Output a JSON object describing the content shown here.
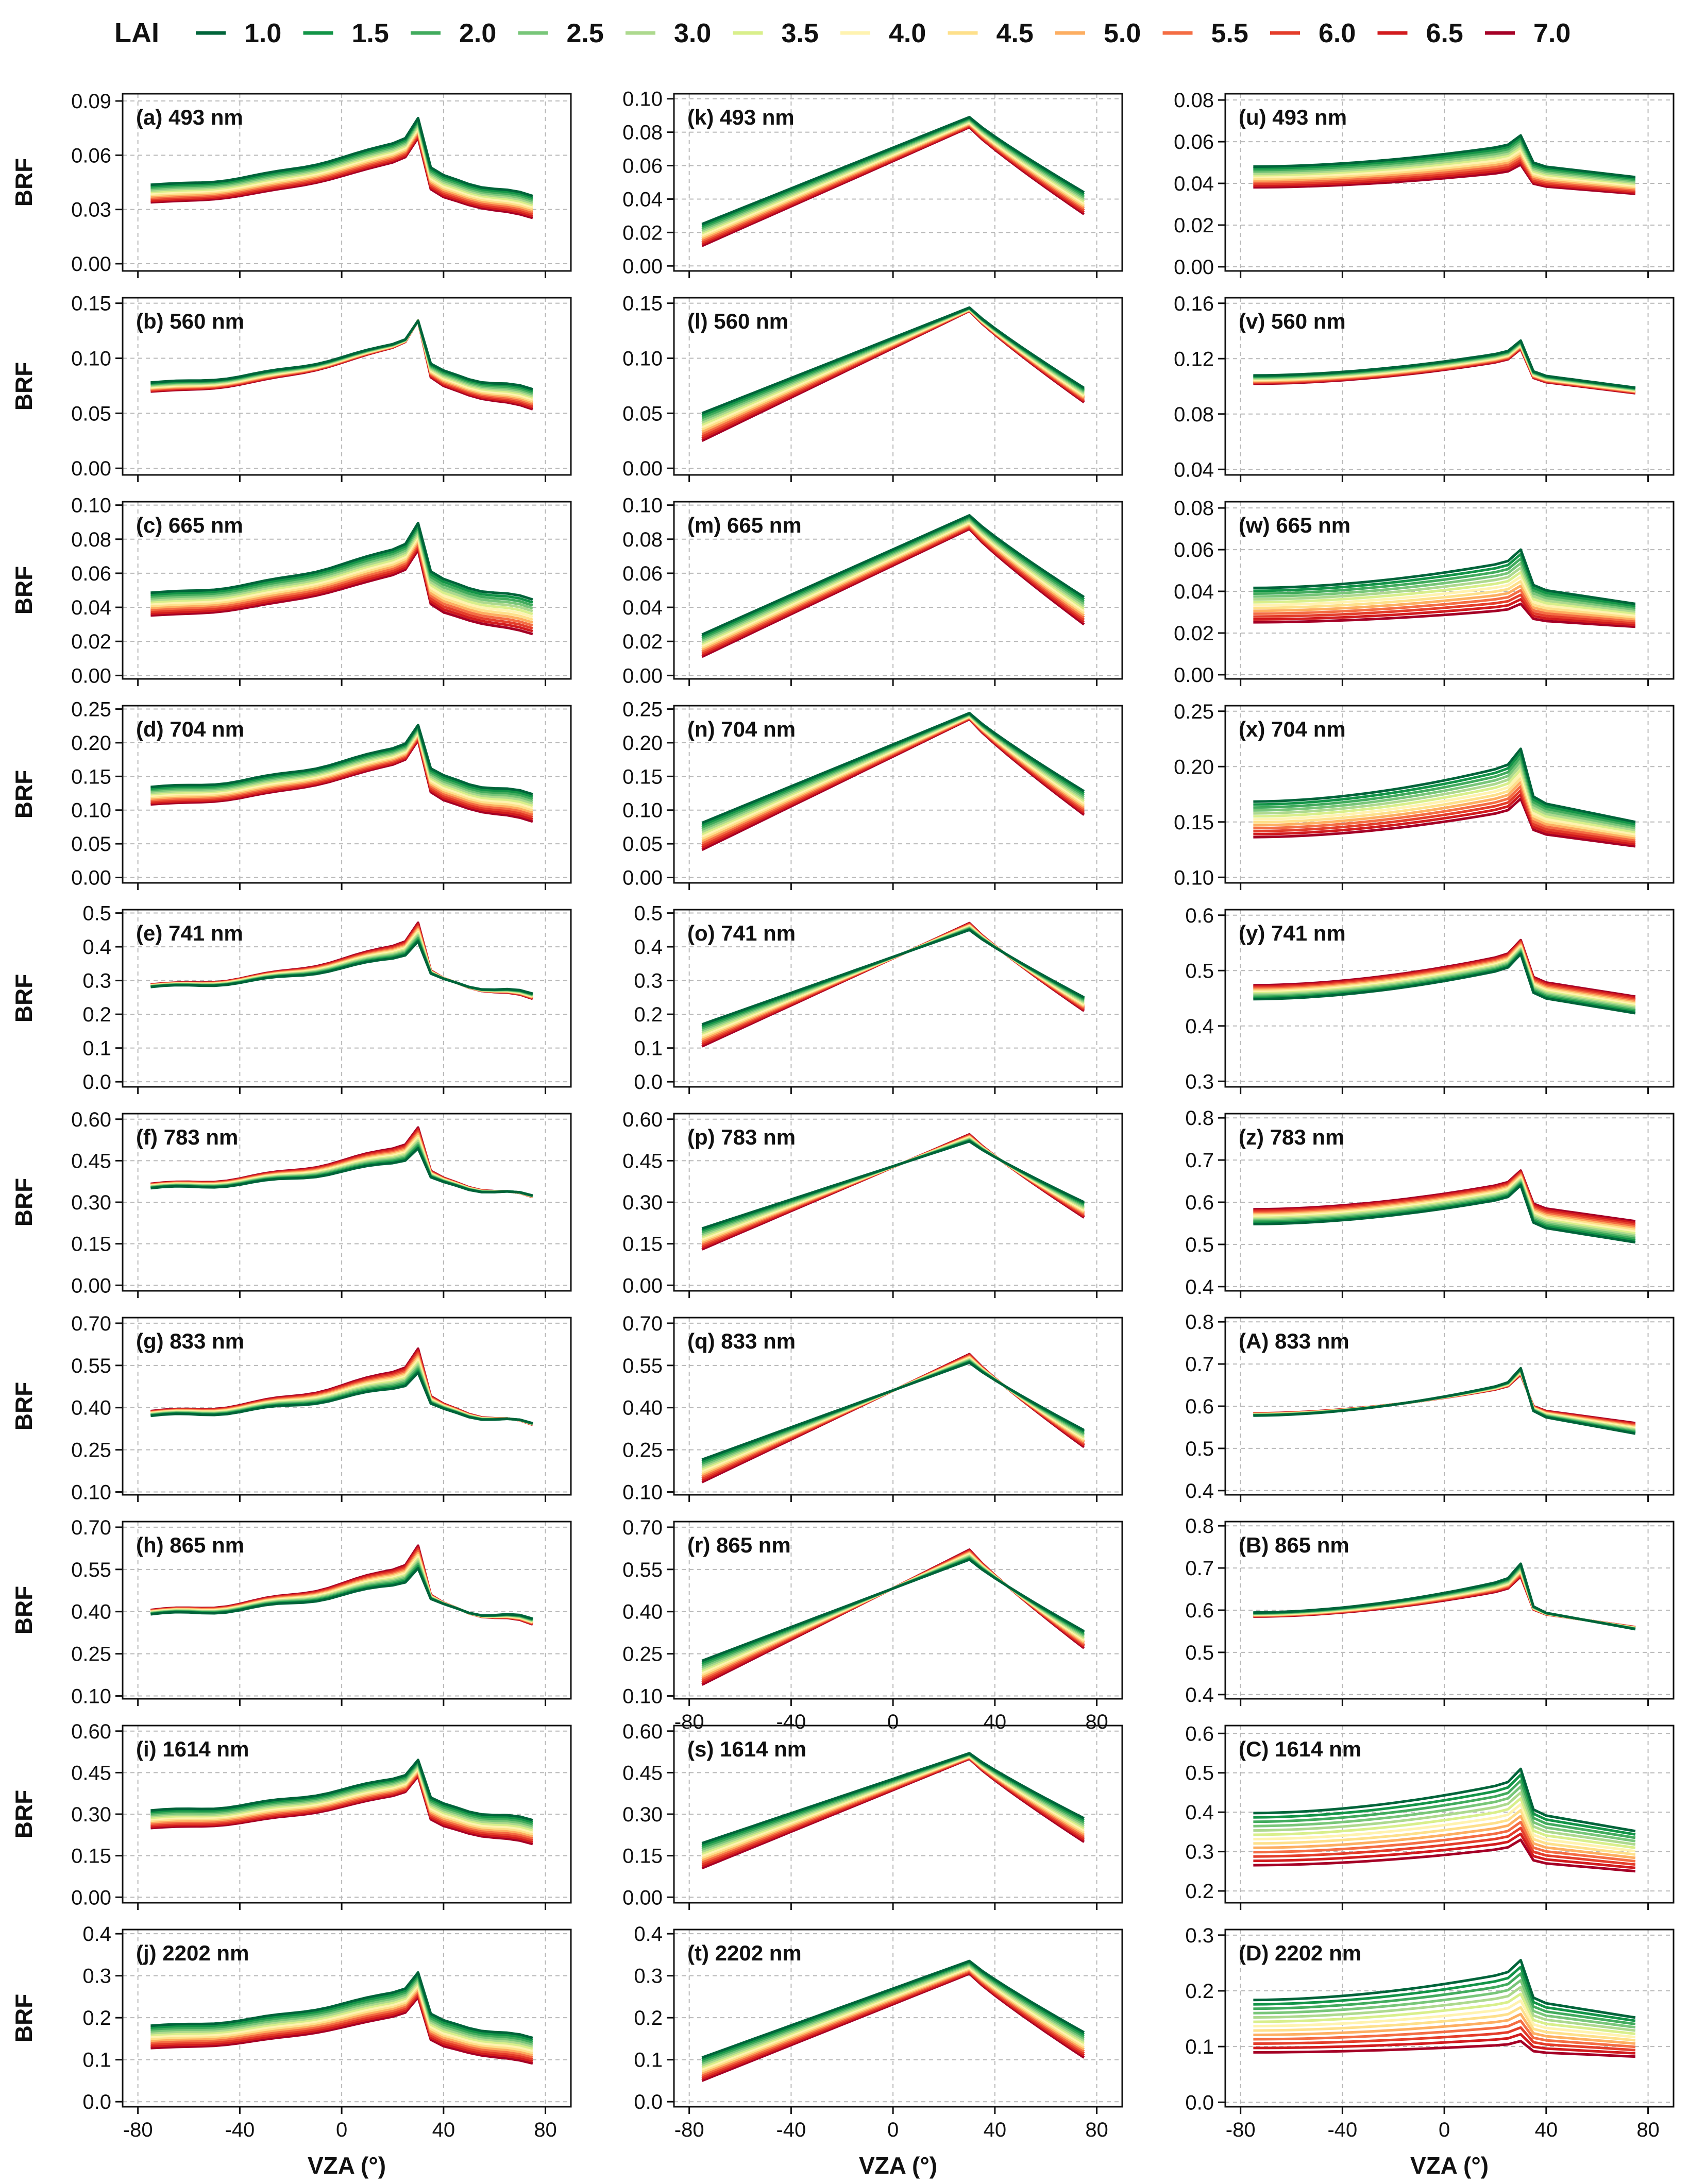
{
  "figure": {
    "legend_title": "LAI",
    "lai_levels": [
      "1.0",
      "1.5",
      "2.0",
      "2.5",
      "3.0",
      "3.5",
      "4.0",
      "4.5",
      "5.0",
      "5.5",
      "6.0",
      "6.5",
      "7.0"
    ],
    "colors": [
      "#00643a",
      "#129447",
      "#41ab5d",
      "#78c679",
      "#add98e",
      "#d9ef8b",
      "#fff3b0",
      "#fee08b",
      "#fdae61",
      "#f46d43",
      "#e43d2a",
      "#d21b1e",
      "#a50026"
    ],
    "y_label": "BRF",
    "x_label": "VZA (°)",
    "x_ticks": [
      -80,
      -40,
      0,
      40,
      80
    ],
    "x_range": [
      -86,
      90
    ]
  },
  "chart_data": [
    {
      "type": "line",
      "label": "(a) 493 nm",
      "col": 0,
      "row": 0,
      "ylim": [
        -0.004,
        0.094
      ],
      "yticks": [
        0.0,
        0.03,
        0.06,
        0.09
      ],
      "ytick_labels": [
        "0.00",
        "0.03",
        "0.06",
        "0.09"
      ],
      "left": 0.026,
      "peak": 0.081,
      "right": 0.037,
      "dleft": -0.009,
      "dpeak": -0.011,
      "dright": -0.012,
      "hump": 0.35,
      "ripple": 1
    },
    {
      "type": "line",
      "label": "(b) 560 nm",
      "col": 0,
      "row": 1,
      "ylim": [
        -0.006,
        0.155
      ],
      "yticks": [
        0.0,
        0.05,
        0.1,
        0.15
      ],
      "ytick_labels": [
        "0.00",
        "0.05",
        "0.10",
        "0.15"
      ],
      "left": 0.051,
      "peak": 0.135,
      "right": 0.071,
      "dleft": -0.012,
      "dpeak": 0.0,
      "dright": -0.018,
      "hump": 0.35,
      "ripple": 1
    },
    {
      "type": "line",
      "label": "(c) 665 nm",
      "col": 0,
      "row": 2,
      "ylim": [
        -0.002,
        0.102
      ],
      "yticks": [
        0.0,
        0.02,
        0.04,
        0.06,
        0.08,
        0.1
      ],
      "ytick_labels": [
        "0.00",
        "0.02",
        "0.04",
        "0.06",
        "0.08",
        "0.10"
      ],
      "left": 0.029,
      "peak": 0.09,
      "right": 0.044,
      "dleft": -0.012,
      "dpeak": -0.016,
      "dright": -0.02,
      "hump": 0.35,
      "ripple": 1
    },
    {
      "type": "line",
      "label": "(d) 704 nm",
      "col": 0,
      "row": 3,
      "ylim": [
        -0.008,
        0.255
      ],
      "yticks": [
        0.0,
        0.05,
        0.1,
        0.15,
        0.2,
        0.25
      ],
      "ytick_labels": [
        "0.00",
        "0.05",
        "0.10",
        "0.15",
        "0.20",
        "0.25"
      ],
      "left": 0.09,
      "peak": 0.228,
      "right": 0.122,
      "dleft": -0.027,
      "dpeak": -0.023,
      "dright": -0.04,
      "hump": 0.35,
      "ripple": 1
    },
    {
      "type": "line",
      "label": "(e) 741 nm",
      "col": 0,
      "row": 4,
      "ylim": [
        -0.015,
        0.51
      ],
      "yticks": [
        0.0,
        0.1,
        0.2,
        0.3,
        0.4,
        0.5
      ],
      "ytick_labels": [
        "0.0",
        "0.1",
        "0.2",
        "0.3",
        "0.4",
        "0.5"
      ],
      "left": 0.215,
      "peak": 0.42,
      "right": 0.258,
      "dleft": -0.015,
      "dpeak": 0.055,
      "dright": -0.015,
      "hump": 0.2,
      "ripple": 1
    },
    {
      "type": "line",
      "label": "(f) 783 nm",
      "col": 0,
      "row": 5,
      "ylim": [
        -0.02,
        0.62
      ],
      "yticks": [
        0.0,
        0.15,
        0.3,
        0.45,
        0.6
      ],
      "ytick_labels": [
        "0.00",
        "0.15",
        "0.30",
        "0.45",
        "0.60"
      ],
      "left": 0.28,
      "peak": 0.5,
      "right": 0.32,
      "dleft": -0.012,
      "dpeak": 0.075,
      "dright": -0.005,
      "hump": 0.2,
      "ripple": 1
    },
    {
      "type": "line",
      "label": "(g) 833 nm",
      "col": 0,
      "row": 6,
      "ylim": [
        0.09,
        0.72
      ],
      "yticks": [
        0.1,
        0.25,
        0.4,
        0.55,
        0.7
      ],
      "ytick_labels": [
        "0.10",
        "0.25",
        "0.40",
        "0.55",
        "0.70"
      ],
      "left": 0.295,
      "peak": 0.53,
      "right": 0.34,
      "dleft": -0.015,
      "dpeak": 0.085,
      "dright": -0.005,
      "hump": 0.2,
      "ripple": 1
    },
    {
      "type": "line",
      "label": "(h) 865 nm",
      "col": 0,
      "row": 7,
      "ylim": [
        0.09,
        0.72
      ],
      "yticks": [
        0.1,
        0.25,
        0.4,
        0.55,
        0.7
      ],
      "ytick_labels": [
        "0.10",
        "0.25",
        "0.40",
        "0.55",
        "0.70"
      ],
      "left": 0.31,
      "peak": 0.56,
      "right": 0.37,
      "dleft": -0.015,
      "dpeak": 0.08,
      "dright": -0.02,
      "hump": 0.2,
      "ripple": 1
    },
    {
      "type": "line",
      "label": "(i) 1614 nm",
      "col": 0,
      "row": 8,
      "ylim": [
        -0.02,
        0.62
      ],
      "yticks": [
        0.0,
        0.15,
        0.3,
        0.45,
        0.6
      ],
      "ytick_labels": [
        "0.00",
        "0.15",
        "0.30",
        "0.45",
        "0.60"
      ],
      "left": 0.225,
      "peak": 0.5,
      "right": 0.275,
      "dleft": -0.065,
      "dpeak": -0.06,
      "dright": -0.085,
      "hump": 0.35,
      "ripple": 1
    },
    {
      "type": "line",
      "label": "(j) 2202 nm",
      "col": 0,
      "row": 9,
      "ylim": [
        -0.012,
        0.41
      ],
      "yticks": [
        0.0,
        0.1,
        0.2,
        0.3,
        0.4
      ],
      "ytick_labels": [
        "0.0",
        "0.1",
        "0.2",
        "0.3",
        "0.4"
      ],
      "left": 0.12,
      "peak": 0.31,
      "right": 0.15,
      "dleft": -0.05,
      "dpeak": -0.06,
      "dright": -0.06,
      "hump": 0.35,
      "ripple": 1
    },
    {
      "type": "line",
      "label": "(k) 493 nm",
      "col": 1,
      "row": 0,
      "ylim": [
        -0.003,
        0.103
      ],
      "yticks": [
        0.0,
        0.02,
        0.04,
        0.06,
        0.08,
        0.1
      ],
      "ytick_labels": [
        "0.00",
        "0.02",
        "0.04",
        "0.06",
        "0.08",
        "0.10"
      ],
      "left": 0.025,
      "peak": 0.089,
      "right": 0.044,
      "dleft": -0.013,
      "dpeak": -0.006,
      "dright": -0.013,
      "hump": 0.0,
      "ripple": 0
    },
    {
      "type": "line",
      "label": "(l) 560 nm",
      "col": 1,
      "row": 1,
      "ylim": [
        -0.006,
        0.155
      ],
      "yticks": [
        0.0,
        0.05,
        0.1,
        0.15
      ],
      "ytick_labels": [
        "0.00",
        "0.05",
        "0.10",
        "0.15"
      ],
      "left": 0.05,
      "peak": 0.146,
      "right": 0.073,
      "dleft": -0.025,
      "dpeak": -0.003,
      "dright": -0.013,
      "hump": 0.0,
      "ripple": 0
    },
    {
      "type": "line",
      "label": "(m) 665 nm",
      "col": 1,
      "row": 2,
      "ylim": [
        -0.002,
        0.102
      ],
      "yticks": [
        0.0,
        0.02,
        0.04,
        0.06,
        0.08,
        0.1
      ],
      "ytick_labels": [
        "0.00",
        "0.02",
        "0.04",
        "0.06",
        "0.08",
        "0.10"
      ],
      "left": 0.024,
      "peak": 0.094,
      "right": 0.046,
      "dleft": -0.013,
      "dpeak": -0.008,
      "dright": -0.016,
      "hump": 0.0,
      "ripple": 0
    },
    {
      "type": "line",
      "label": "(n) 704 nm",
      "col": 1,
      "row": 3,
      "ylim": [
        -0.008,
        0.255
      ],
      "yticks": [
        0.0,
        0.05,
        0.1,
        0.15,
        0.2,
        0.25
      ],
      "ytick_labels": [
        "0.00",
        "0.05",
        "0.10",
        "0.15",
        "0.20",
        "0.25"
      ],
      "left": 0.081,
      "peak": 0.244,
      "right": 0.128,
      "dleft": -0.04,
      "dpeak": -0.009,
      "dright": -0.035,
      "hump": 0.0,
      "ripple": 0
    },
    {
      "type": "line",
      "label": "(o) 741 nm",
      "col": 1,
      "row": 4,
      "ylim": [
        -0.015,
        0.51
      ],
      "yticks": [
        0.0,
        0.1,
        0.2,
        0.3,
        0.4,
        0.5
      ],
      "ytick_labels": [
        "0.0",
        "0.1",
        "0.2",
        "0.3",
        "0.4",
        "0.5"
      ],
      "left": 0.17,
      "peak": 0.45,
      "right": 0.25,
      "dleft": -0.065,
      "dpeak": 0.02,
      "dright": -0.04,
      "hump": 0.0,
      "ripple": 0
    },
    {
      "type": "line",
      "label": "(p) 783 nm",
      "col": 1,
      "row": 5,
      "ylim": [
        -0.02,
        0.62
      ],
      "yticks": [
        0.0,
        0.15,
        0.3,
        0.45,
        0.6
      ],
      "ytick_labels": [
        "0.00",
        "0.15",
        "0.30",
        "0.45",
        "0.60"
      ],
      "left": 0.205,
      "peak": 0.52,
      "right": 0.3,
      "dleft": -0.075,
      "dpeak": 0.025,
      "dright": -0.055,
      "hump": 0.0,
      "ripple": 0
    },
    {
      "type": "line",
      "label": "(q) 833 nm",
      "col": 1,
      "row": 6,
      "ylim": [
        0.09,
        0.72
      ],
      "yticks": [
        0.1,
        0.25,
        0.4,
        0.55,
        0.7
      ],
      "ytick_labels": [
        "0.10",
        "0.25",
        "0.40",
        "0.55",
        "0.70"
      ],
      "left": 0.215,
      "peak": 0.56,
      "right": 0.32,
      "dleft": -0.08,
      "dpeak": 0.03,
      "dright": -0.06,
      "hump": 0.0,
      "ripple": 0
    },
    {
      "type": "line",
      "label": "(r) 865 nm",
      "col": 1,
      "row": 7,
      "ylim": [
        0.09,
        0.72
      ],
      "yticks": [
        0.1,
        0.25,
        0.4,
        0.55,
        0.7
      ],
      "ytick_labels": [
        "0.10",
        "0.25",
        "0.40",
        "0.55",
        "0.70"
      ],
      "left": 0.225,
      "peak": 0.585,
      "right": 0.33,
      "dleft": -0.085,
      "dpeak": 0.035,
      "dright": -0.06,
      "hump": 0.0,
      "ripple": 0
    },
    {
      "type": "line",
      "label": "(s) 1614 nm",
      "col": 1,
      "row": 8,
      "ylim": [
        -0.02,
        0.62
      ],
      "yticks": [
        0.0,
        0.15,
        0.3,
        0.45,
        0.6
      ],
      "ytick_labels": [
        "0.00",
        "0.15",
        "0.30",
        "0.45",
        "0.60"
      ],
      "left": 0.195,
      "peak": 0.52,
      "right": 0.285,
      "dleft": -0.09,
      "dpeak": -0.02,
      "dright": -0.085,
      "hump": 0.0,
      "ripple": 0
    },
    {
      "type": "line",
      "label": "(t) 2202 nm",
      "col": 1,
      "row": 9,
      "ylim": [
        -0.012,
        0.41
      ],
      "yticks": [
        0.0,
        0.1,
        0.2,
        0.3,
        0.4
      ],
      "ytick_labels": [
        "0.0",
        "0.1",
        "0.2",
        "0.3",
        "0.4"
      ],
      "left": 0.105,
      "peak": 0.335,
      "right": 0.165,
      "dleft": -0.055,
      "dpeak": -0.03,
      "dright": -0.06,
      "hump": 0.0,
      "ripple": 0
    },
    {
      "type": "line",
      "label": "(u) 493 nm",
      "col": 2,
      "row": 0,
      "ylim": [
        -0.002,
        0.083
      ],
      "yticks": [
        0.0,
        0.02,
        0.04,
        0.06,
        0.08
      ],
      "ytick_labels": [
        "0.00",
        "0.02",
        "0.04",
        "0.06",
        "0.08"
      ],
      "left": 0.041,
      "peak": 0.063,
      "right": 0.043,
      "dleft": -0.008,
      "dpeak": -0.014,
      "dright": -0.008,
      "hump": 0.3,
      "ripple": 0
    },
    {
      "type": "line",
      "label": "(v) 560 nm",
      "col": 2,
      "row": 1,
      "ylim": [
        0.036,
        0.164
      ],
      "yticks": [
        0.04,
        0.08,
        0.12,
        0.16
      ],
      "ytick_labels": [
        "0.04",
        "0.08",
        "0.12",
        "0.16"
      ],
      "left": 0.096,
      "peak": 0.133,
      "right": 0.099,
      "dleft": -0.006,
      "dpeak": -0.006,
      "dright": -0.004,
      "hump": 0.3,
      "ripple": 0
    },
    {
      "type": "line",
      "label": "(w) 665 nm",
      "col": 2,
      "row": 2,
      "ylim": [
        -0.002,
        0.083
      ],
      "yticks": [
        0.0,
        0.02,
        0.04,
        0.06,
        0.08
      ],
      "ytick_labels": [
        "0.00",
        "0.02",
        "0.04",
        "0.06",
        "0.08"
      ],
      "left": 0.033,
      "peak": 0.06,
      "right": 0.034,
      "dleft": -0.012,
      "dpeak": -0.026,
      "dright": -0.011,
      "hump": 0.3,
      "ripple": 0
    },
    {
      "type": "line",
      "label": "(x) 704 nm",
      "col": 2,
      "row": 3,
      "ylim": [
        0.095,
        0.255
      ],
      "yticks": [
        0.1,
        0.15,
        0.2,
        0.25
      ],
      "ytick_labels": [
        "0.10",
        "0.15",
        "0.20",
        "0.25"
      ],
      "left": 0.146,
      "peak": 0.216,
      "right": 0.15,
      "dleft": -0.026,
      "dpeak": -0.045,
      "dright": -0.022,
      "hump": 0.3,
      "ripple": 0
    },
    {
      "type": "line",
      "label": "(y) 741 nm",
      "col": 2,
      "row": 4,
      "ylim": [
        0.29,
        0.61
      ],
      "yticks": [
        0.3,
        0.4,
        0.5,
        0.6
      ],
      "ytick_labels": [
        "0.3",
        "0.4",
        "0.5",
        "0.6"
      ],
      "left": 0.41,
      "peak": 0.53,
      "right": 0.423,
      "dleft": 0.025,
      "dpeak": 0.025,
      "dright": 0.03,
      "hump": 0.3,
      "ripple": 0
    },
    {
      "type": "line",
      "label": "(z) 783 nm",
      "col": 2,
      "row": 5,
      "ylim": [
        0.39,
        0.81
      ],
      "yticks": [
        0.4,
        0.5,
        0.6,
        0.7,
        0.8
      ],
      "ytick_labels": [
        "0.4",
        "0.5",
        "0.6",
        "0.7",
        "0.8"
      ],
      "left": 0.505,
      "peak": 0.64,
      "right": 0.505,
      "dleft": 0.035,
      "dpeak": 0.035,
      "dright": 0.05,
      "hump": 0.3,
      "ripple": 0
    },
    {
      "type": "line",
      "label": "(A) 833 nm",
      "col": 2,
      "row": 6,
      "ylim": [
        0.39,
        0.81
      ],
      "yticks": [
        0.4,
        0.5,
        0.6,
        0.7,
        0.8
      ],
      "ytick_labels": [
        "0.4",
        "0.5",
        "0.6",
        "0.7",
        "0.8"
      ],
      "left": 0.525,
      "peak": 0.69,
      "right": 0.535,
      "dleft": 0.015,
      "dpeak": -0.015,
      "dright": 0.025,
      "hump": 0.3,
      "ripple": 0
    },
    {
      "type": "line",
      "label": "(B) 865 nm",
      "col": 2,
      "row": 7,
      "ylim": [
        0.39,
        0.81
      ],
      "yticks": [
        0.4,
        0.5,
        0.6,
        0.7,
        0.8
      ],
      "ytick_labels": [
        "0.4",
        "0.5",
        "0.6",
        "0.7",
        "0.8"
      ],
      "left": 0.54,
      "peak": 0.71,
      "right": 0.555,
      "dleft": 0.0,
      "dpeak": -0.03,
      "dright": 0.005,
      "hump": 0.3,
      "ripple": 0
    },
    {
      "type": "line",
      "label": "(C) 1614 nm",
      "col": 2,
      "row": 8,
      "ylim": [
        0.17,
        0.62
      ],
      "yticks": [
        0.2,
        0.3,
        0.4,
        0.5,
        0.6
      ],
      "ytick_labels": [
        "0.2",
        "0.3",
        "0.4",
        "0.5",
        "0.6"
      ],
      "left": 0.345,
      "peak": 0.51,
      "right": 0.352,
      "dleft": -0.11,
      "dpeak": -0.18,
      "dright": -0.102,
      "hump": 0.3,
      "ripple": 0
    },
    {
      "type": "line",
      "label": "(D) 2202 nm",
      "col": 2,
      "row": 9,
      "ylim": [
        -0.008,
        0.31
      ],
      "yticks": [
        0.0,
        0.1,
        0.2,
        0.3
      ],
      "ytick_labels": [
        "0.0",
        "0.1",
        "0.2",
        "0.3"
      ],
      "left": 0.15,
      "peak": 0.255,
      "right": 0.152,
      "dleft": -0.07,
      "dpeak": -0.145,
      "dright": -0.07,
      "hump": 0.3,
      "ripple": 0
    }
  ]
}
